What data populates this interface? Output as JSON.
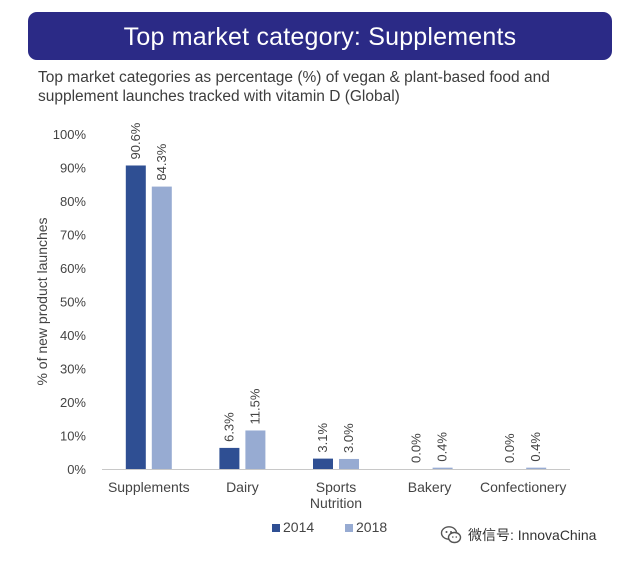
{
  "banner": {
    "title": "Top market category: Supplements"
  },
  "subtitle": {
    "line1": "Top market categories as percentage (%) of vegan & plant-based food and",
    "line2": "supplement launches tracked with vitamin D (Global)"
  },
  "watermark": {
    "text": "微信号: InnovaChina",
    "icon": "wechat-icon"
  },
  "colors": {
    "banner": "#2b2a86",
    "series_2014": "#2f4f93",
    "series_2018": "#97abd2"
  },
  "chart_data": {
    "type": "bar",
    "categories": [
      [
        "Supplements"
      ],
      [
        "Dairy"
      ],
      [
        "Sports",
        "Nutrition"
      ],
      [
        "Bakery"
      ],
      [
        "Confectionery"
      ]
    ],
    "series": [
      {
        "name": "2014",
        "values": [
          90.6,
          6.3,
          3.1,
          0.0,
          0.0
        ],
        "labels": [
          "90.6%",
          "6.3%",
          "3.1%",
          "0.0%",
          "0.0%"
        ],
        "color": "#2f4f93"
      },
      {
        "name": "2018",
        "values": [
          84.3,
          11.5,
          3.0,
          0.4,
          0.4
        ],
        "labels": [
          "84.3%",
          "11.5%",
          "3.0%",
          "0.4%",
          "0.4%"
        ],
        "color": "#97abd2"
      }
    ],
    "ylabel": "% of new product launches",
    "ylim": [
      0,
      100
    ],
    "yticks": [
      "0%",
      "10%",
      "20%",
      "30%",
      "40%",
      "50%",
      "60%",
      "70%",
      "80%",
      "90%",
      "100%"
    ],
    "grid": false,
    "legend": "bottom"
  }
}
